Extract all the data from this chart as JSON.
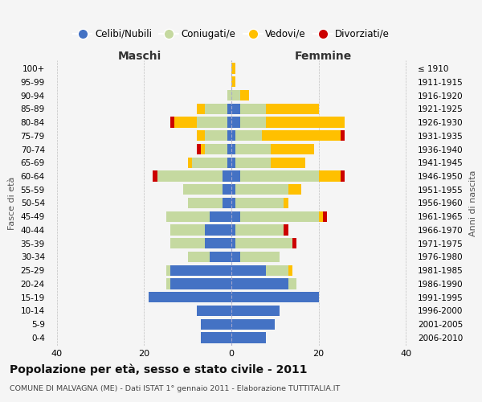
{
  "age_groups": [
    "0-4",
    "5-9",
    "10-14",
    "15-19",
    "20-24",
    "25-29",
    "30-34",
    "35-39",
    "40-44",
    "45-49",
    "50-54",
    "55-59",
    "60-64",
    "65-69",
    "70-74",
    "75-79",
    "80-84",
    "85-89",
    "90-94",
    "95-99",
    "100+"
  ],
  "birth_years": [
    "2006-2010",
    "2001-2005",
    "1996-2000",
    "1991-1995",
    "1986-1990",
    "1981-1985",
    "1976-1980",
    "1971-1975",
    "1966-1970",
    "1961-1965",
    "1956-1960",
    "1951-1955",
    "1946-1950",
    "1941-1945",
    "1936-1940",
    "1931-1935",
    "1926-1930",
    "1921-1925",
    "1916-1920",
    "1911-1915",
    "≤ 1910"
  ],
  "males": {
    "celibe": [
      7,
      7,
      8,
      19,
      14,
      14,
      5,
      6,
      6,
      5,
      2,
      2,
      2,
      1,
      1,
      1,
      1,
      1,
      0,
      0,
      0
    ],
    "coniugato": [
      0,
      0,
      0,
      0,
      1,
      1,
      5,
      8,
      8,
      10,
      8,
      9,
      15,
      8,
      5,
      5,
      7,
      5,
      1,
      0,
      0
    ],
    "vedovo": [
      0,
      0,
      0,
      0,
      0,
      0,
      0,
      0,
      0,
      0,
      0,
      0,
      0,
      1,
      1,
      2,
      5,
      2,
      0,
      0,
      0
    ],
    "divorziato": [
      0,
      0,
      0,
      0,
      0,
      0,
      0,
      0,
      0,
      0,
      0,
      0,
      1,
      0,
      1,
      0,
      1,
      0,
      0,
      0,
      0
    ]
  },
  "females": {
    "nubile": [
      8,
      10,
      11,
      20,
      13,
      8,
      2,
      1,
      1,
      2,
      1,
      1,
      2,
      1,
      1,
      1,
      2,
      2,
      0,
      0,
      0
    ],
    "coniugata": [
      0,
      0,
      0,
      0,
      2,
      5,
      9,
      13,
      11,
      18,
      11,
      12,
      18,
      8,
      8,
      6,
      6,
      6,
      2,
      0,
      0
    ],
    "vedova": [
      0,
      0,
      0,
      0,
      0,
      1,
      0,
      0,
      0,
      1,
      1,
      3,
      5,
      8,
      10,
      18,
      18,
      12,
      2,
      1,
      1
    ],
    "divorziata": [
      0,
      0,
      0,
      0,
      0,
      0,
      0,
      1,
      1,
      1,
      0,
      0,
      1,
      0,
      0,
      1,
      0,
      0,
      0,
      0,
      0
    ]
  },
  "colors": {
    "celibe": "#4472C4",
    "coniugato": "#c5d9a0",
    "vedovo": "#ffc000",
    "divorziato": "#cc0000"
  },
  "title": "Popolazione per età, sesso e stato civile - 2011",
  "subtitle": "COMUNE DI MALVAGNA (ME) - Dati ISTAT 1° gennaio 2011 - Elaborazione TUTTITALIA.IT",
  "xlabel_left": "Maschi",
  "xlabel_right": "Femmine",
  "ylabel_left": "Fasce di età",
  "ylabel_right": "Anni di nascita",
  "xlim": 42,
  "legend_labels": [
    "Celibi/Nubili",
    "Coniugati/e",
    "Vedovi/e",
    "Divorziati/e"
  ],
  "background_color": "#f5f5f5",
  "maschi_color": "#333333",
  "femmine_color": "#333333"
}
